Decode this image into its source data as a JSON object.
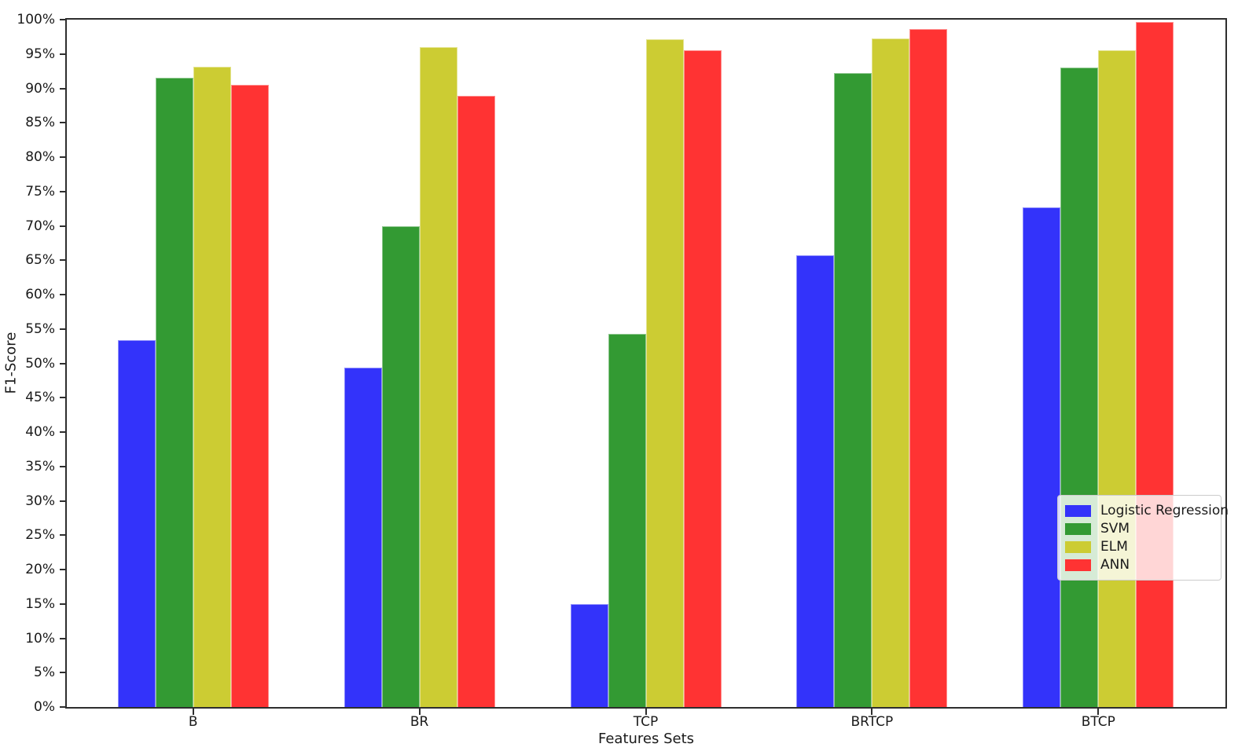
{
  "chart_data": {
    "type": "bar",
    "title": "",
    "xlabel": "Features Sets",
    "ylabel": "F1-Score",
    "categories": [
      "B",
      "BR",
      "TCP",
      "BRTCP",
      "BTCP"
    ],
    "series": [
      {
        "name": "Logistic Regression",
        "color": "#3333fa",
        "values": [
          53.4,
          49.4,
          15.0,
          65.7,
          72.7
        ]
      },
      {
        "name": "SVM",
        "color": "#339a33",
        "values": [
          91.5,
          70.0,
          54.3,
          92.2,
          93.0
        ]
      },
      {
        "name": "ELM",
        "color": "#cccc33",
        "values": [
          93.1,
          96.0,
          97.1,
          97.3,
          95.6
        ]
      },
      {
        "name": "ANN",
        "color": "#ff3333",
        "values": [
          90.5,
          88.9,
          95.5,
          98.6,
          99.7
        ]
      }
    ],
    "ylim": [
      0,
      100
    ],
    "ytick_step": 5,
    "ytick_suffix": "%",
    "grid": false,
    "legend_position": "inside-right-middle",
    "spine_color": "#2e2e2e",
    "text_color": "#1a1a1a"
  }
}
